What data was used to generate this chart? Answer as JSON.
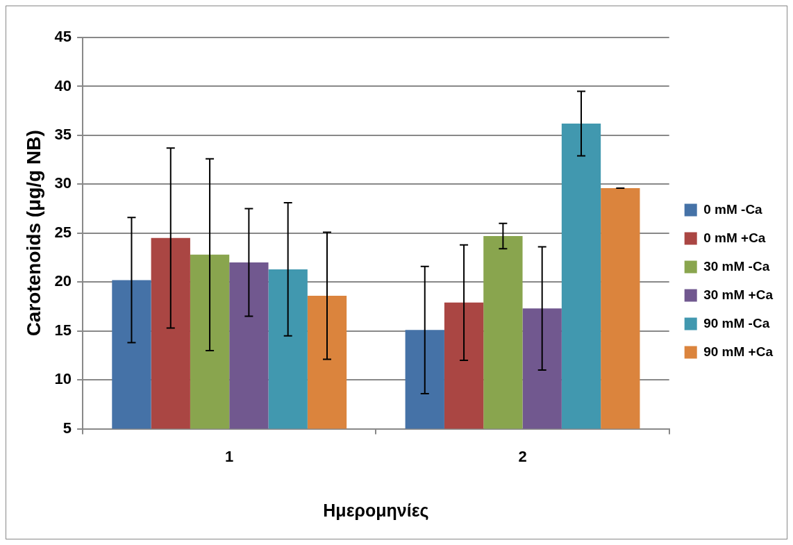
{
  "chart_data": {
    "type": "bar",
    "xlabel": "Ημερομηνίες",
    "ylabel": "Carotenoids (μg/g NB)",
    "categories": [
      "1",
      "2"
    ],
    "series": [
      {
        "name": "0 mM -Ca",
        "color": "#4572a7",
        "values": [
          20.2,
          15.1
        ],
        "errors": [
          6.4,
          6.5
        ]
      },
      {
        "name": "0 mM +Ca",
        "color": "#aa4643",
        "values": [
          24.5,
          17.9
        ],
        "errors": [
          9.2,
          5.9
        ]
      },
      {
        "name": "30 mM -Ca",
        "color": "#89a54e",
        "values": [
          22.8,
          24.7
        ],
        "errors": [
          9.8,
          1.3
        ]
      },
      {
        "name": "30 mM +Ca",
        "color": "#71588f",
        "values": [
          22.0,
          17.3
        ],
        "errors": [
          5.5,
          6.3
        ]
      },
      {
        "name": "90 mM -Ca",
        "color": "#4198af",
        "values": [
          21.3,
          36.2
        ],
        "errors": [
          6.8,
          3.3
        ]
      },
      {
        "name": "90 mM +Ca",
        "color": "#db843d",
        "values": [
          18.6,
          29.6
        ],
        "errors": [
          6.5,
          0
        ]
      }
    ],
    "ylim": [
      5,
      45
    ],
    "yticks": [
      5,
      10,
      15,
      20,
      25,
      30,
      35,
      40,
      45
    ],
    "grid": "y",
    "legend": "right"
  }
}
